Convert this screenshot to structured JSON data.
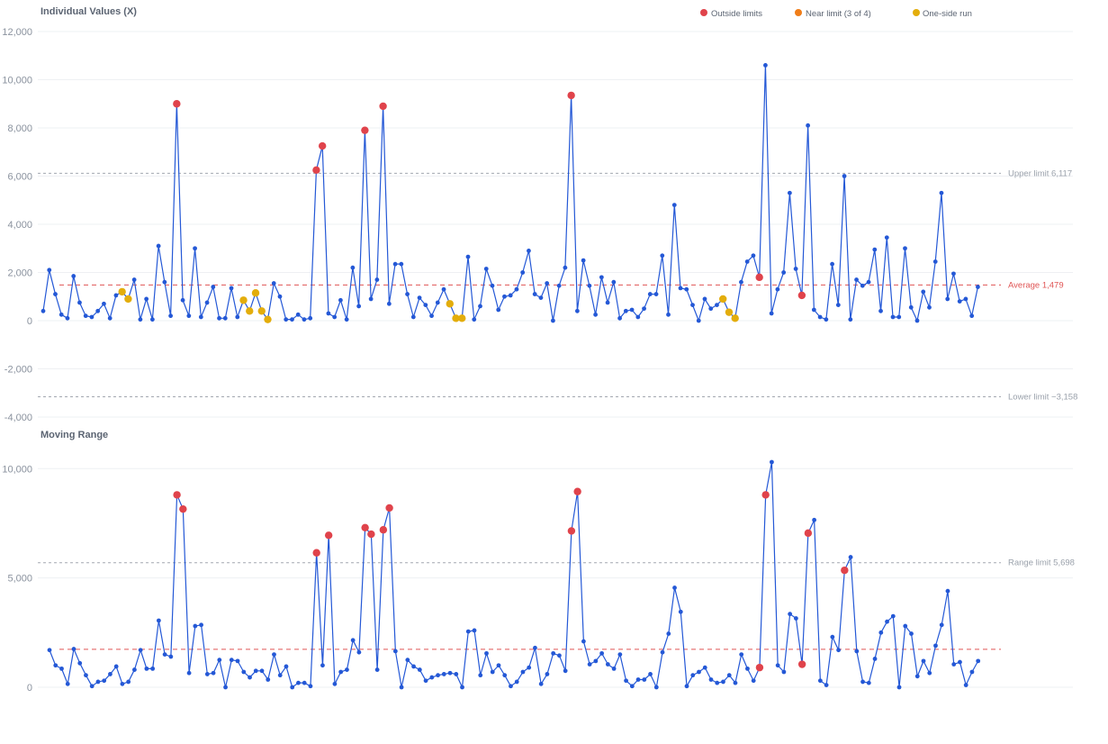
{
  "legend": [
    {
      "label": "Outside limits",
      "color": "#e0434b"
    },
    {
      "label": "Near limit (3 of 4)",
      "color": "#f07d18"
    },
    {
      "label": "One-side run",
      "color": "#e3ad0b"
    }
  ],
  "colors": {
    "line": "#2458d6",
    "average_line": "#e05555",
    "limit_line": "#a3a8b0",
    "grid": "#eef0f3",
    "outside": "#e0434b",
    "near": "#f07d18",
    "run": "#e3ad0b"
  },
  "chart_data": [
    {
      "type": "line",
      "title": "Individual Values (X)",
      "ylim": [
        -4000,
        12000
      ],
      "yticks": [
        -4000,
        -2000,
        0,
        2000,
        4000,
        6000,
        8000,
        10000,
        12000
      ],
      "ytick_labels": [
        "-4,000",
        "-2,000",
        "0",
        "2,000",
        "4,000",
        "6,000",
        "8,000",
        "10,000",
        "12,000"
      ],
      "grid": true,
      "legend_position": "top-right",
      "reference_lines": [
        {
          "value": 6117,
          "label": "Upper limit 6,117",
          "style": "limit"
        },
        {
          "value": 1479,
          "label": "Average 1,479",
          "style": "average"
        },
        {
          "value": -3158,
          "label": "Lower limit −3,158",
          "style": "limit"
        }
      ],
      "values": [
        400,
        2100,
        1100,
        250,
        100,
        1850,
        750,
        200,
        150,
        400,
        700,
        100,
        1050,
        1200,
        900,
        1700,
        50,
        900,
        50,
        3100,
        1600,
        200,
        9000,
        850,
        200,
        3000,
        150,
        750,
        1400,
        100,
        100,
        1350,
        150,
        850,
        400,
        1150,
        400,
        50,
        1550,
        1000,
        50,
        50,
        250,
        50,
        100,
        6250,
        7250,
        300,
        150,
        850,
        50,
        2200,
        600,
        7900,
        900,
        1700,
        8900,
        700,
        2350,
        2350,
        1100,
        150,
        950,
        650,
        200,
        750,
        1300,
        700,
        100,
        100,
        2650,
        50,
        600,
        2150,
        1450,
        450,
        1000,
        1050,
        1300,
        2000,
        2900,
        1100,
        950,
        1550,
        0,
        1450,
        2200,
        9350,
        400,
        2500,
        1450,
        250,
        1800,
        750,
        1600,
        100,
        400,
        450,
        150,
        500,
        1100,
        1100,
        2700,
        250,
        4800,
        1350,
        1300,
        650,
        0,
        900,
        500,
        650,
        900,
        350,
        100,
        1600,
        2450,
        2700,
        1800,
        10600,
        300,
        1300,
        2000,
        5300,
        2150,
        1050,
        8100,
        450,
        150,
        50,
        2350,
        650,
        6000,
        50,
        1700,
        1450,
        1600,
        2950,
        400,
        3450,
        150,
        150,
        3000,
        550,
        0,
        1200,
        550,
        2450,
        5300,
        900,
        1950,
        800,
        900,
        200,
        1400
      ],
      "outside_limits": [
        22,
        45,
        46,
        53,
        56,
        87,
        118,
        125
      ],
      "near_limit": [],
      "one_side_run": [
        13,
        14,
        33,
        34,
        35,
        36,
        37,
        67,
        68,
        69,
        112,
        113,
        114
      ]
    },
    {
      "type": "line",
      "title": "Moving Range",
      "ylim": [
        0,
        11000
      ],
      "yticks": [
        0,
        5000,
        10000
      ],
      "ytick_labels": [
        "0",
        "5,000",
        "10,000"
      ],
      "grid": true,
      "reference_lines": [
        {
          "value": 5698,
          "label": "Range limit 5,698",
          "style": "limit"
        },
        {
          "value": 1735,
          "label": "",
          "style": "average"
        }
      ],
      "values": [
        1700,
        1000,
        850,
        150,
        1750,
        1100,
        550,
        50,
        250,
        300,
        600,
        950,
        150,
        250,
        800,
        1700,
        850,
        850,
        3050,
        1500,
        1400,
        8800,
        8150,
        650,
        2800,
        2850,
        600,
        650,
        1250,
        0,
        1250,
        1200,
        700,
        450,
        750,
        750,
        350,
        1500,
        550,
        950,
        0,
        200,
        200,
        50,
        6150,
        1000,
        6950,
        150,
        700,
        800,
        2150,
        1600,
        7300,
        7000,
        800,
        7200,
        8200,
        1650,
        0,
        1250,
        950,
        800,
        300,
        450,
        550,
        600,
        650,
        600,
        0,
        2550,
        2600,
        550,
        1550,
        700,
        1000,
        550,
        50,
        250,
        700,
        900,
        1800,
        150,
        600,
        1550,
        1450,
        750,
        7150,
        8950,
        2100,
        1050,
        1200,
        1550,
        1050,
        850,
        1500,
        300,
        50,
        350,
        350,
        600,
        0,
        1600,
        2450,
        4550,
        3450,
        50,
        550,
        700,
        900,
        350,
        200,
        250,
        550,
        200,
        1500,
        850,
        300,
        900,
        8800,
        10300,
        1000,
        700,
        3350,
        3150,
        1050,
        7050,
        7650,
        300,
        100,
        2300,
        1700,
        5350,
        5950,
        1650,
        250,
        200,
        1300,
        2500,
        3000,
        3250,
        0,
        2800,
        2450,
        500,
        1200,
        650,
        1900,
        2850,
        4400,
        1050,
        1150,
        100,
        700,
        1200
      ],
      "outside_limits": [
        21,
        22,
        44,
        46,
        52,
        53,
        55,
        56,
        86,
        87,
        117,
        118,
        124,
        125,
        131
      ]
    }
  ]
}
